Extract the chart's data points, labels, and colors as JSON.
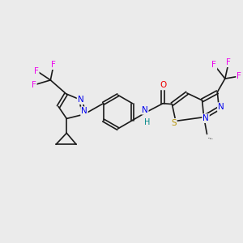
{
  "bg_color": "#ebebeb",
  "bond_color": "#1a1a1a",
  "colors": {
    "N": "#0000ee",
    "O": "#ee0000",
    "S": "#b8960c",
    "F": "#ee00ee",
    "C": "#1a1a1a",
    "H": "#008888"
  },
  "fig_size": [
    3.0,
    3.0
  ],
  "dpi": 100,
  "lw": 1.2,
  "fs": 7.0
}
